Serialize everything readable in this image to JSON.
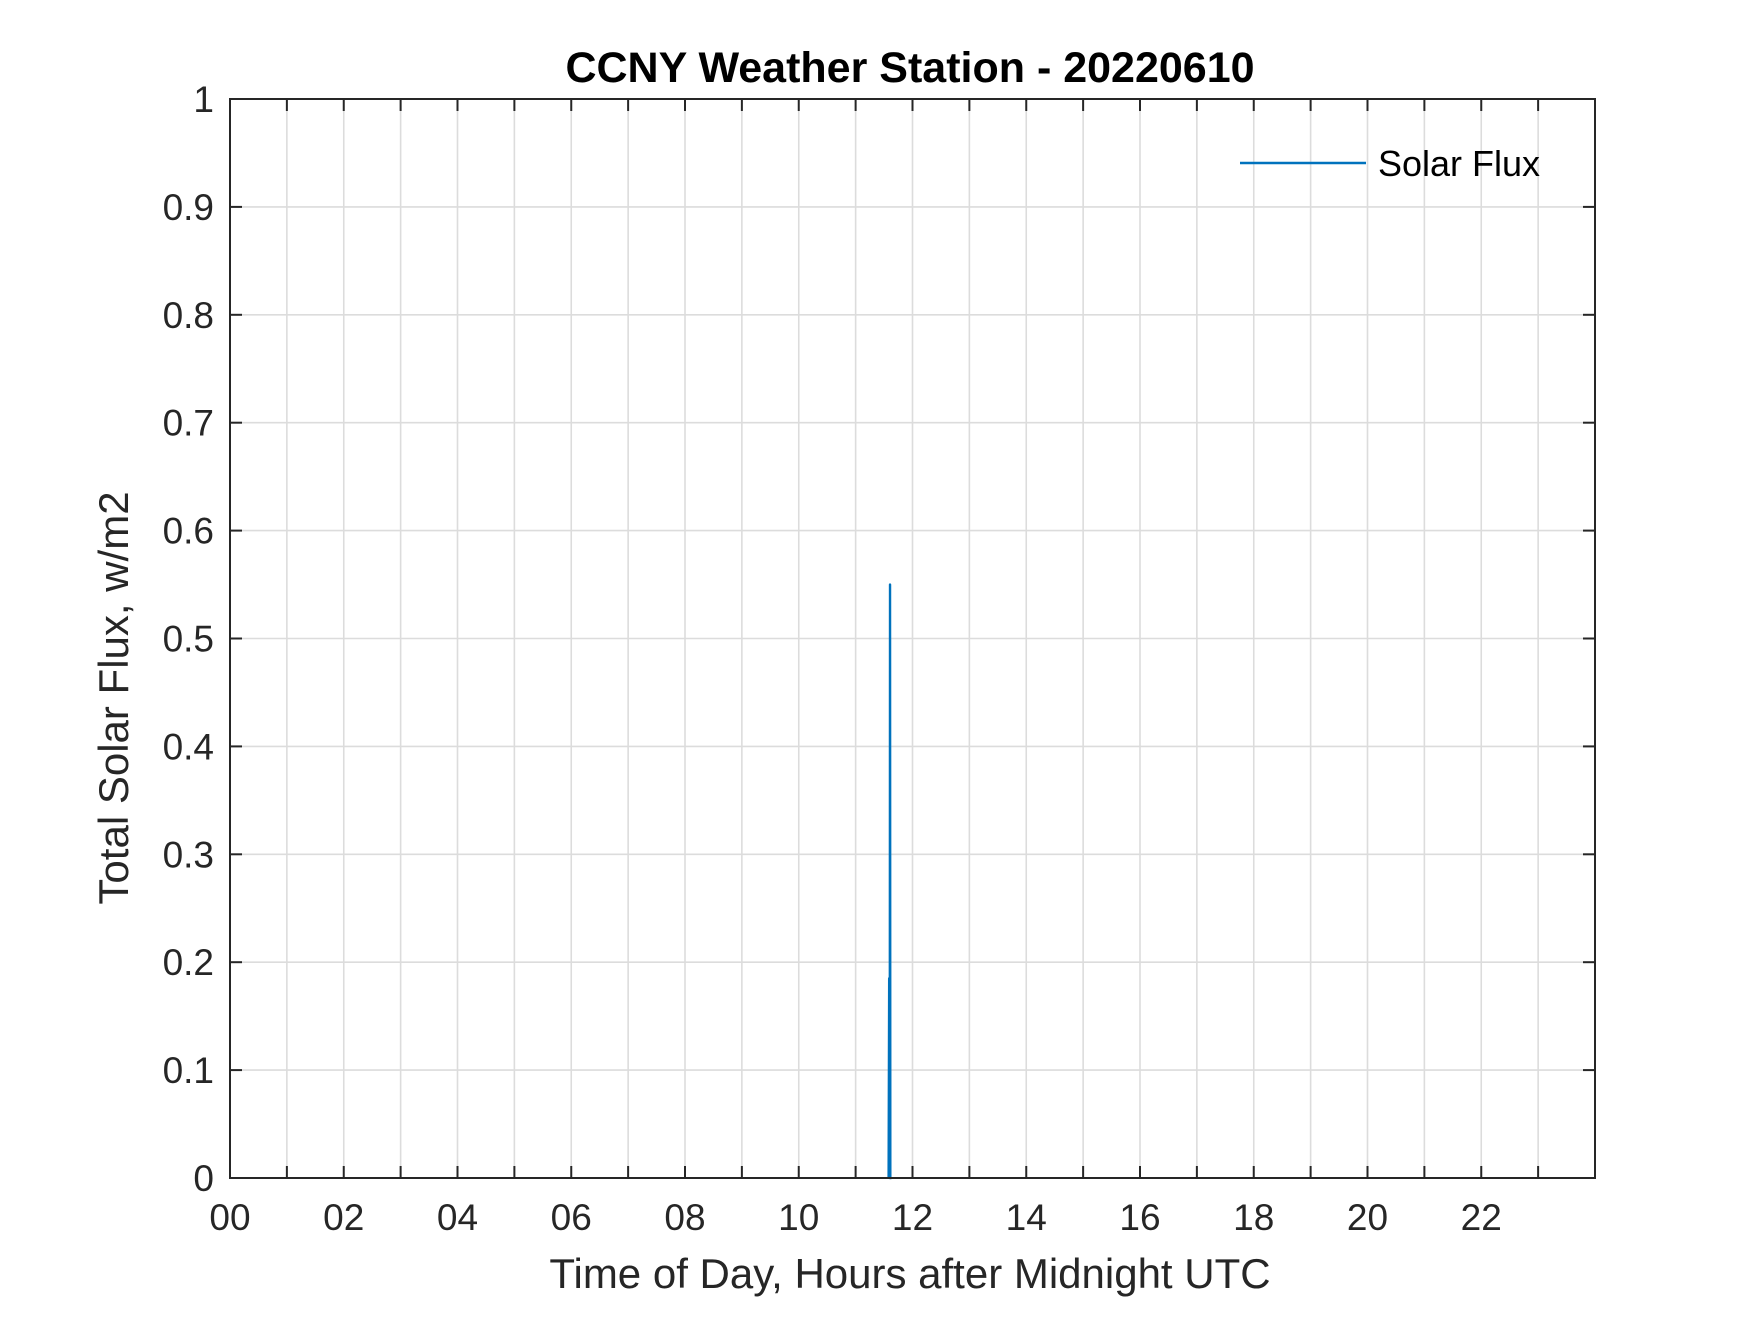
{
  "chart_data": {
    "type": "line",
    "title": "CCNY Weather Station - 20220610",
    "xlabel": "Time of Day, Hours after Midnight UTC",
    "ylabel": "Total Solar Flux, w/m2",
    "xlim": [
      0,
      24
    ],
    "ylim": [
      0,
      1
    ],
    "x_tick_values": [
      0,
      2,
      4,
      6,
      8,
      10,
      12,
      14,
      16,
      18,
      20,
      22
    ],
    "x_tick_labels": [
      "00",
      "02",
      "04",
      "06",
      "08",
      "10",
      "12",
      "14",
      "16",
      "18",
      "20",
      "22"
    ],
    "x_minor_ticks": [
      1,
      3,
      5,
      7,
      9,
      11,
      13,
      15,
      17,
      19,
      21,
      23
    ],
    "y_tick_values": [
      0,
      0.1,
      0.2,
      0.3,
      0.4,
      0.5,
      0.6,
      0.7,
      0.8,
      0.9,
      1
    ],
    "y_tick_labels": [
      "0",
      "0.1",
      "0.2",
      "0.3",
      "0.4",
      "0.5",
      "0.6",
      "0.7",
      "0.8",
      "0.9",
      "1"
    ],
    "grid": true,
    "legend": {
      "position": "top-right",
      "entries": [
        "Solar Flux"
      ]
    },
    "series": [
      {
        "name": "Solar Flux",
        "color": "#0072BD",
        "x": [
          11.58,
          11.59,
          11.6,
          11.605,
          11.61,
          11.62,
          11.63
        ],
        "y": [
          0,
          0.185,
          0,
          0.55,
          0,
          0,
          0
        ]
      }
    ]
  }
}
